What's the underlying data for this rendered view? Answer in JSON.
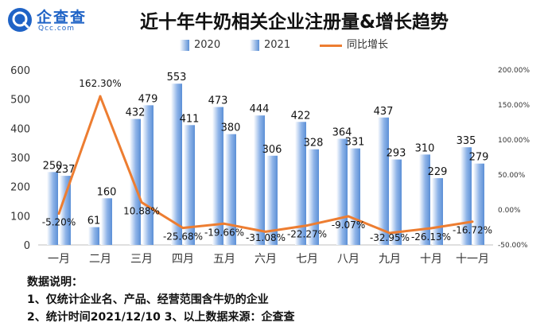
{
  "brand": {
    "name_cn": "企查查",
    "name_en": "Qcc.com"
  },
  "title": "近十年牛奶相关企业注册量&增长趋势",
  "notes": {
    "heading": "数据说明：",
    "line1": "1、仅统计企业名、产品、经营范围含牛奶的企业",
    "line2": "2、统计时间2021/12/10    3、以上数据来源：企查查"
  },
  "colors": {
    "bar": "#5b8fd6",
    "bar_light": "#ffffff",
    "line": "#ed7d31"
  },
  "chart_data": {
    "type": "bar",
    "title": "近十年牛奶相关企业注册量&增长趋势",
    "categories": [
      "一月",
      "二月",
      "三月",
      "四月",
      "五月",
      "六月",
      "七月",
      "八月",
      "九月",
      "十月",
      "十一月"
    ],
    "series": [
      {
        "name": "2020",
        "type": "bar",
        "values": [
          250,
          61,
          432,
          553,
          473,
          444,
          422,
          364,
          437,
          310,
          335
        ]
      },
      {
        "name": "2021",
        "type": "bar",
        "values": [
          237,
          160,
          479,
          411,
          380,
          306,
          328,
          331,
          293,
          229,
          279
        ]
      },
      {
        "name": "同比增长",
        "type": "line",
        "axis": "right",
        "values": [
          -5.2,
          162.3,
          10.88,
          -25.68,
          -19.66,
          -31.08,
          -22.27,
          -9.07,
          -32.95,
          -26.13,
          -16.72
        ]
      }
    ],
    "growth_labels": [
      "-5.20%",
      "162.30%",
      "10.88%",
      "-25.68%",
      "-19.66%",
      "-31.08%",
      "-22.27%",
      "-9.07%",
      "-32.95%",
      "-26.13%",
      "-16.72%"
    ],
    "y_left": {
      "min": 0,
      "max": 600,
      "ticks": [
        "0",
        "100",
        "200",
        "300",
        "400",
        "500",
        "600"
      ]
    },
    "y_right": {
      "min": -50,
      "max": 200,
      "ticks": [
        "-50.00%",
        "0.00%",
        "50.00%",
        "100.00%",
        "150.00%",
        "200.00%"
      ]
    },
    "legend": [
      "2020",
      "2021",
      "同比增长"
    ],
    "legend_position": "top-center",
    "grid": false
  }
}
